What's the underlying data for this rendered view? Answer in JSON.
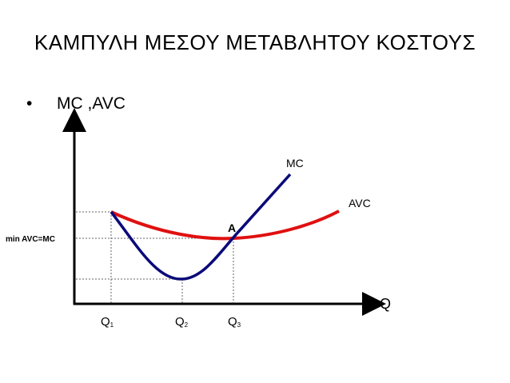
{
  "title": "ΚΑΜΠΥΛΗ ΜΕΣΟΥ ΜΕΤΑΒΛΗΤΟΥ ΚΟΣΤΟΥΣ",
  "bullet": {
    "symbol": "•",
    "text": "MC ,AVC"
  },
  "axes": {
    "x_label": "Q"
  },
  "curves": {
    "mc_label": "MC",
    "avc_label": "AVC",
    "mc_color": "#0a0a7a",
    "avc_color": "#e01010"
  },
  "point_label": "A",
  "level_label": "min AVC=MC",
  "x_ticks": [
    {
      "main": "Q",
      "sub": "1"
    },
    {
      "main": "Q",
      "sub": "2"
    },
    {
      "main": "Q",
      "sub": "3"
    }
  ]
}
